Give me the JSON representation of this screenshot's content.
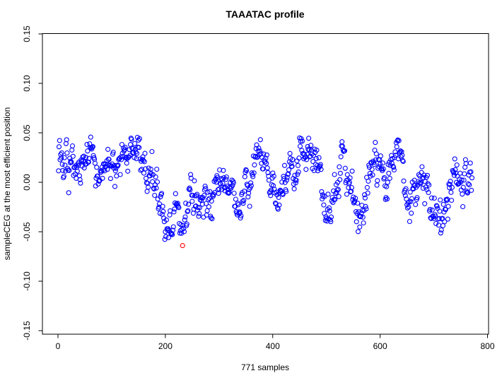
{
  "chart_data": {
    "type": "scatter",
    "title": "TAAATAC profile",
    "xlabel": "771 samples",
    "ylabel": "sampleCEG at the most efficient position",
    "n_samples": 771,
    "x_ticks": [
      0,
      200,
      400,
      600,
      800
    ],
    "y_ticks": [
      -0.15,
      -0.1,
      -0.05,
      0.0,
      0.05,
      0.1,
      0.15
    ],
    "xlim": [
      -29,
      803
    ],
    "ylim": [
      -0.1504,
      0.1504
    ],
    "grid": false,
    "legend": null,
    "point_style": {
      "shape": "open-circle",
      "color": "#0000ff",
      "radius_px": 3,
      "stroke_px": 1.1
    },
    "outlier_point": {
      "index": 232,
      "y": -0.064,
      "color": "#ff0000"
    },
    "y_extent_observed": [
      -0.064,
      0.048
    ],
    "trend_anchors": [
      [
        1,
        0.018
      ],
      [
        15,
        0.022
      ],
      [
        30,
        0.015
      ],
      [
        45,
        0.01
      ],
      [
        58,
        0.02
      ],
      [
        70,
        0.012
      ],
      [
        82,
        0.006
      ],
      [
        95,
        0.018
      ],
      [
        108,
        0.022
      ],
      [
        120,
        0.018
      ],
      [
        132,
        0.024
      ],
      [
        146,
        0.03
      ],
      [
        158,
        0.022
      ],
      [
        170,
        0.012
      ],
      [
        180,
        0.0
      ],
      [
        190,
        -0.02
      ],
      [
        200,
        -0.042
      ],
      [
        210,
        -0.048
      ],
      [
        218,
        -0.03
      ],
      [
        226,
        -0.048
      ],
      [
        234,
        -0.052
      ],
      [
        240,
        -0.025
      ],
      [
        248,
        -0.012
      ],
      [
        256,
        -0.022
      ],
      [
        264,
        -0.034
      ],
      [
        272,
        -0.02
      ],
      [
        280,
        -0.008
      ],
      [
        288,
        -0.018
      ],
      [
        296,
        -0.008
      ],
      [
        305,
        0.004
      ],
      [
        314,
        0.01
      ],
      [
        323,
        -0.006
      ],
      [
        331,
        -0.026
      ],
      [
        339,
        -0.032
      ],
      [
        347,
        -0.008
      ],
      [
        356,
        0.008
      ],
      [
        365,
        0.015
      ],
      [
        374,
        0.022
      ],
      [
        383,
        0.024
      ],
      [
        391,
        0.01
      ],
      [
        400,
        -0.006
      ],
      [
        409,
        -0.02
      ],
      [
        418,
        -0.012
      ],
      [
        427,
        0.002
      ],
      [
        436,
        0.008
      ],
      [
        445,
        0.015
      ],
      [
        454,
        0.024
      ],
      [
        463,
        0.032
      ],
      [
        471,
        0.03
      ],
      [
        480,
        0.012
      ],
      [
        489,
        -0.008
      ],
      [
        498,
        -0.025
      ],
      [
        507,
        -0.033
      ],
      [
        515,
        -0.012
      ],
      [
        524,
        0.008
      ],
      [
        533,
        0.018
      ],
      [
        542,
        0.004
      ],
      [
        551,
        -0.015
      ],
      [
        560,
        -0.03
      ],
      [
        569,
        -0.015
      ],
      [
        578,
        0.008
      ],
      [
        587,
        0.02
      ],
      [
        596,
        0.024
      ],
      [
        605,
        0.012
      ],
      [
        614,
        0.0
      ],
      [
        623,
        0.012
      ],
      [
        632,
        0.022
      ],
      [
        641,
        0.012
      ],
      [
        650,
        -0.006
      ],
      [
        659,
        -0.02
      ],
      [
        668,
        -0.012
      ],
      [
        677,
        0.0
      ],
      [
        686,
        -0.008
      ],
      [
        695,
        -0.018
      ],
      [
        704,
        -0.028
      ],
      [
        713,
        -0.038
      ],
      [
        722,
        -0.024
      ],
      [
        731,
        -0.008
      ],
      [
        740,
        0.0
      ],
      [
        749,
        -0.006
      ],
      [
        758,
        -0.004
      ],
      [
        766,
        -0.002
      ],
      [
        771,
        0.0
      ]
    ],
    "noise": {
      "seed": 13,
      "sigma": 0.0095,
      "phi": 0.5
    },
    "clip": [
      -0.058,
      0.047
    ]
  }
}
